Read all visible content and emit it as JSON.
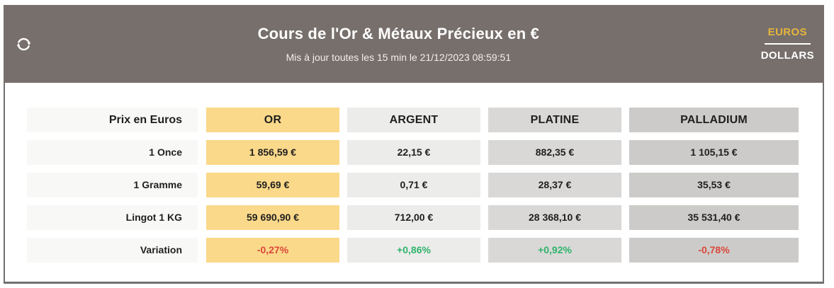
{
  "header": {
    "title": "Cours de l'Or & Métaux Précieux en €",
    "subtitle": "Mis à jour toutes les 15 min le 21/12/2023 08:59:51",
    "refresh_icon": "refresh-icon",
    "currency": {
      "euros_label": "EUROS",
      "dollars_label": "DOLLARS",
      "active": "EUROS"
    }
  },
  "colors": {
    "header_background": "#776f6c",
    "accent_gold_text": "#e6b53c",
    "gold_column": "#fbd98a",
    "silver_column": "#ececeb",
    "platinum_column": "#d9d8d7",
    "palladium_column": "#cccbc9",
    "label_column": "#f8f8f7",
    "negative": "#d9483b",
    "positive": "#2fb36a"
  },
  "table": {
    "corner_label": "Prix en Euros",
    "columns": [
      {
        "key": "or",
        "label": "OR",
        "background": "#fbd98a"
      },
      {
        "key": "argent",
        "label": "ARGENT",
        "background": "#ececeb"
      },
      {
        "key": "platine",
        "label": "PLATINE",
        "background": "#d9d8d7"
      },
      {
        "key": "palladium",
        "label": "PALLADIUM",
        "background": "#cccbc9"
      }
    ],
    "rows": [
      {
        "label": "1 Once",
        "values": [
          "1 856,59 €",
          "22,15 €",
          "882,35 €",
          "1 105,15 €"
        ]
      },
      {
        "label": "1 Gramme",
        "values": [
          "59,69 €",
          "0,71 €",
          "28,37 €",
          "35,53 €"
        ]
      },
      {
        "label": "Lingot 1 KG",
        "values": [
          "59 690,90 €",
          "712,00 €",
          "28 368,10 €",
          "35 531,40 €"
        ]
      },
      {
        "label": "Variation",
        "values": [
          "-0,27%",
          "+0,86%",
          "+0,92%",
          "-0,78%"
        ],
        "value_colors": [
          "#d9483b",
          "#2fb36a",
          "#2fb36a",
          "#d9483b"
        ]
      }
    ]
  }
}
